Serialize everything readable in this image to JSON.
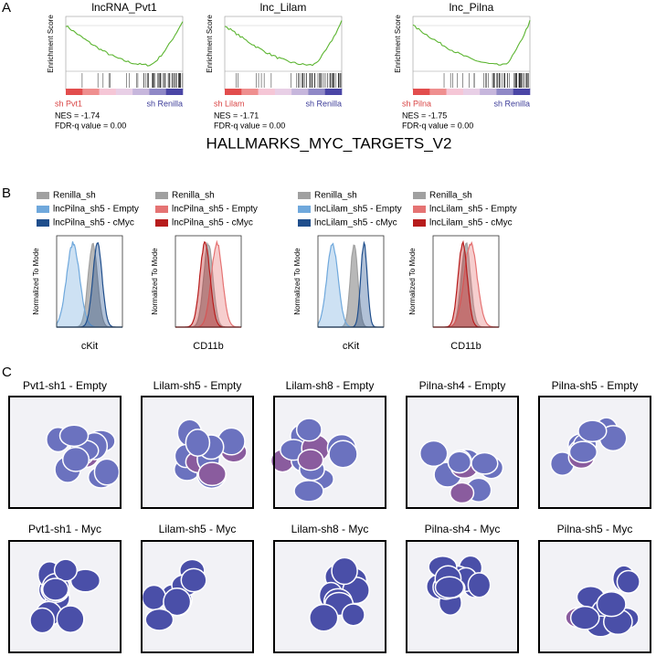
{
  "panel_a": {
    "label": "A",
    "gene_set": "HALLMARKS_MYC_TARGETS_V2",
    "plots": [
      {
        "title": "lncRNA_Pvt1",
        "y_label": "Enrichment Score",
        "left_label": "sh Pvt1",
        "right_label": "sh Renilla",
        "nes": "NES = -1.74",
        "fdr": "FDR-q value = 0.00"
      },
      {
        "title": "lnc_Lilam",
        "y_label": "Enrichment Score",
        "left_label": "sh Lilam",
        "right_label": "sh Renilla",
        "nes": "NES = -1.71",
        "fdr": "FDR-q value = 0.00"
      },
      {
        "title": "lnc_Pilna",
        "y_label": "Enrichment Score",
        "left_label": "sh Pilna",
        "right_label": "sh Renilla",
        "nes": "NES = -1.75",
        "fdr": "FDR-q value = 0.00"
      }
    ]
  },
  "panel_b": {
    "label": "B",
    "plots": [
      {
        "legend": [
          {
            "name": "Renilla_sh",
            "color": "#a0a0a0"
          },
          {
            "name": "lncPilna_sh5 - Empty",
            "color": "#6fa8dc"
          },
          {
            "name": "lncPilna_sh5 - cMyc",
            "color": "#1f4e8c"
          }
        ],
        "y_label": "Normalized To Mode",
        "x_label": "cKit"
      },
      {
        "legend": [
          {
            "name": "Renilla_sh",
            "color": "#a0a0a0"
          },
          {
            "name": "lncPilna_sh5 - Empty",
            "color": "#e57373"
          },
          {
            "name": "lncPilna_sh5 - cMyc",
            "color": "#b71c1c"
          }
        ],
        "y_label": "Normalized To Mode",
        "x_label": "CD11b"
      },
      {
        "legend": [
          {
            "name": "Renilla_sh",
            "color": "#a0a0a0"
          },
          {
            "name": "lncLilam_sh5 - Empty",
            "color": "#6fa8dc"
          },
          {
            "name": "lncLilam_sh5 - cMyc",
            "color": "#1f4e8c"
          }
        ],
        "y_label": "Normalized To Mode",
        "x_label": "cKit"
      },
      {
        "legend": [
          {
            "name": "Renilla_sh",
            "color": "#a0a0a0"
          },
          {
            "name": "lncLilam_sh5 - Empty",
            "color": "#e57373"
          },
          {
            "name": "lncLilam_sh5 - cMyc",
            "color": "#b71c1c"
          }
        ],
        "y_label": "Normalized To Mode",
        "x_label": "CD11b"
      }
    ]
  },
  "panel_c": {
    "label": "C",
    "rows": [
      [
        "Pvt1-sh1 - Empty",
        "Lilam-sh5 - Empty",
        "Lilam-sh8 - Empty",
        "Pilna-sh4 - Empty",
        "Pilna-sh5 - Empty"
      ],
      [
        "Pvt1-sh1 - Myc",
        "Lilam-sh5 - Myc",
        "Lilam-sh8 - Myc",
        "Pilna-sh4 - Myc",
        "Pilna-sh5 - Myc"
      ]
    ]
  }
}
